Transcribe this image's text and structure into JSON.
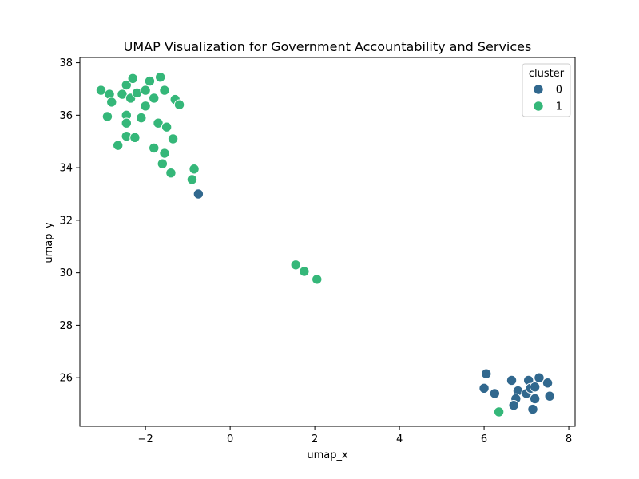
{
  "chart_data": {
    "type": "scatter",
    "title": "UMAP Visualization for Government Accountability and Services",
    "xlabel": "umap_x",
    "ylabel": "umap_y",
    "xlim": [
      -3.55,
      8.15
    ],
    "ylim": [
      24.15,
      38.2
    ],
    "xticks": [
      -2,
      0,
      2,
      4,
      6,
      8
    ],
    "yticks": [
      26,
      28,
      30,
      32,
      34,
      36,
      38
    ],
    "grid": false,
    "legend": {
      "title": "cluster",
      "placement": "top-right"
    },
    "series": [
      {
        "name": "0",
        "color": "#31688e",
        "points": [
          [
            -0.75,
            33.0
          ],
          [
            6.05,
            26.15
          ],
          [
            6.0,
            25.6
          ],
          [
            6.25,
            25.4
          ],
          [
            6.65,
            25.9
          ],
          [
            6.8,
            25.5
          ],
          [
            6.75,
            25.2
          ],
          [
            6.7,
            24.95
          ],
          [
            7.0,
            25.4
          ],
          [
            7.05,
            25.9
          ],
          [
            7.1,
            25.6
          ],
          [
            7.2,
            25.65
          ],
          [
            7.3,
            26.0
          ],
          [
            7.2,
            25.2
          ],
          [
            7.15,
            24.8
          ],
          [
            7.5,
            25.8
          ],
          [
            7.55,
            25.3
          ]
        ]
      },
      {
        "name": "1",
        "color": "#35b779",
        "points": [
          [
            -3.05,
            36.95
          ],
          [
            -2.85,
            36.8
          ],
          [
            -2.8,
            36.5
          ],
          [
            -2.9,
            35.95
          ],
          [
            -2.55,
            36.8
          ],
          [
            -2.45,
            37.15
          ],
          [
            -2.3,
            37.4
          ],
          [
            -2.35,
            36.65
          ],
          [
            -2.2,
            36.85
          ],
          [
            -2.0,
            36.95
          ],
          [
            -1.9,
            37.3
          ],
          [
            -1.65,
            37.45
          ],
          [
            -1.55,
            36.95
          ],
          [
            -1.8,
            36.65
          ],
          [
            -1.3,
            36.6
          ],
          [
            -2.0,
            36.35
          ],
          [
            -1.2,
            36.4
          ],
          [
            -2.45,
            36.0
          ],
          [
            -2.45,
            35.7
          ],
          [
            -2.1,
            35.9
          ],
          [
            -1.7,
            35.7
          ],
          [
            -1.5,
            35.55
          ],
          [
            -2.45,
            35.2
          ],
          [
            -2.25,
            35.15
          ],
          [
            -2.65,
            34.85
          ],
          [
            -1.35,
            35.1
          ],
          [
            -1.8,
            34.75
          ],
          [
            -1.55,
            34.55
          ],
          [
            -1.6,
            34.15
          ],
          [
            -1.4,
            33.8
          ],
          [
            -0.85,
            33.95
          ],
          [
            -0.9,
            33.55
          ],
          [
            1.55,
            30.3
          ],
          [
            1.75,
            30.05
          ],
          [
            2.05,
            29.75
          ],
          [
            6.35,
            24.7
          ]
        ]
      }
    ]
  }
}
